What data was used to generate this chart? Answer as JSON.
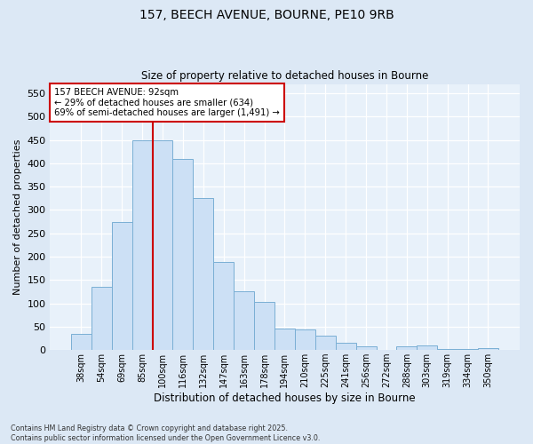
{
  "title": "157, BEECH AVENUE, BOURNE, PE10 9RB",
  "subtitle": "Size of property relative to detached houses in Bourne",
  "xlabel": "Distribution of detached houses by size in Bourne",
  "ylabel": "Number of detached properties",
  "categories": [
    "38sqm",
    "54sqm",
    "69sqm",
    "85sqm",
    "100sqm",
    "116sqm",
    "132sqm",
    "147sqm",
    "163sqm",
    "178sqm",
    "194sqm",
    "210sqm",
    "225sqm",
    "241sqm",
    "256sqm",
    "272sqm",
    "288sqm",
    "303sqm",
    "319sqm",
    "334sqm",
    "350sqm"
  ],
  "values": [
    35,
    135,
    275,
    450,
    450,
    410,
    325,
    188,
    125,
    104,
    46,
    44,
    30,
    15,
    8,
    0,
    8,
    10,
    2,
    2,
    4
  ],
  "bar_color": "#cce0f5",
  "bar_edge_color": "#7aafd4",
  "property_line_label": "157 BEECH AVENUE: 92sqm",
  "annotation_line1": "← 29% of detached houses are smaller (634)",
  "annotation_line2": "69% of semi-detached houses are larger (1,491) →",
  "annotation_box_color": "#ffffff",
  "annotation_box_edge_color": "#cc0000",
  "vline_color": "#cc0000",
  "vline_x": 3.5,
  "ylim": [
    0,
    570
  ],
  "yticks": [
    0,
    50,
    100,
    150,
    200,
    250,
    300,
    350,
    400,
    450,
    500,
    550
  ],
  "bg_color": "#dce8f5",
  "plot_bg_color": "#e8f1fa",
  "grid_color": "#ffffff",
  "footer1": "Contains HM Land Registry data © Crown copyright and database right 2025.",
  "footer2": "Contains public sector information licensed under the Open Government Licence v3.0."
}
